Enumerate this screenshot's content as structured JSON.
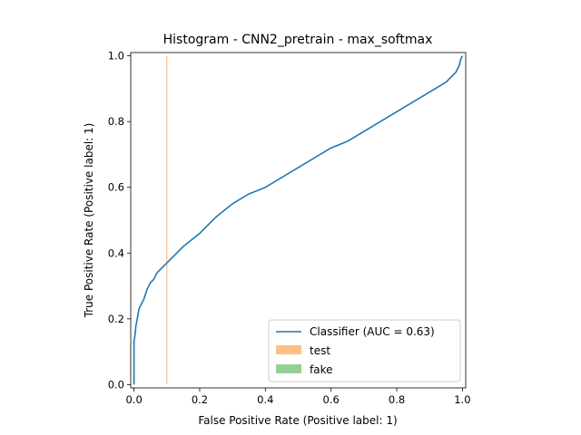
{
  "chart_data": {
    "type": "line",
    "title": "Histogram - CNN2_pretrain - max_softmax",
    "xlabel": "False Positive Rate (Positive label: 1)",
    "ylabel": "True Positive Rate (Positive label: 1)",
    "xlim": [
      -0.01,
      1.01
    ],
    "ylim": [
      -0.01,
      1.01
    ],
    "xticks": [
      0.0,
      0.2,
      0.4,
      0.6,
      0.8,
      1.0
    ],
    "yticks": [
      0.0,
      0.2,
      0.4,
      0.6,
      0.8,
      1.0
    ],
    "xtick_labels": [
      "0.0",
      "0.2",
      "0.4",
      "0.6",
      "0.8",
      "1.0"
    ],
    "ytick_labels": [
      "0.0",
      "0.2",
      "0.4",
      "0.6",
      "0.8",
      "1.0"
    ],
    "grid": false,
    "legend_position": "bottom-right",
    "series": [
      {
        "name": "Classifier (AUC = 0.63)",
        "kind": "line",
        "color": "#1f77b4",
        "x": [
          0.0,
          0.0,
          0.003,
          0.006,
          0.01,
          0.015,
          0.02,
          0.03,
          0.04,
          0.05,
          0.06,
          0.07,
          0.08,
          0.09,
          0.1,
          0.12,
          0.15,
          0.2,
          0.25,
          0.3,
          0.35,
          0.4,
          0.45,
          0.5,
          0.55,
          0.6,
          0.65,
          0.7,
          0.75,
          0.8,
          0.85,
          0.9,
          0.95,
          0.98,
          0.99,
          0.995,
          1.0
        ],
        "y": [
          0.0,
          0.13,
          0.15,
          0.18,
          0.2,
          0.23,
          0.24,
          0.26,
          0.29,
          0.31,
          0.32,
          0.34,
          0.35,
          0.36,
          0.37,
          0.39,
          0.42,
          0.46,
          0.51,
          0.55,
          0.58,
          0.6,
          0.63,
          0.66,
          0.69,
          0.72,
          0.74,
          0.77,
          0.8,
          0.83,
          0.86,
          0.89,
          0.92,
          0.95,
          0.97,
          0.99,
          1.0
        ]
      },
      {
        "name": "test",
        "kind": "bar",
        "color": "#ff7f0e",
        "x_value": 0.1,
        "height": 1.0
      },
      {
        "name": "fake",
        "kind": "bar",
        "color": "#2ca02c",
        "height": 0
      }
    ]
  }
}
